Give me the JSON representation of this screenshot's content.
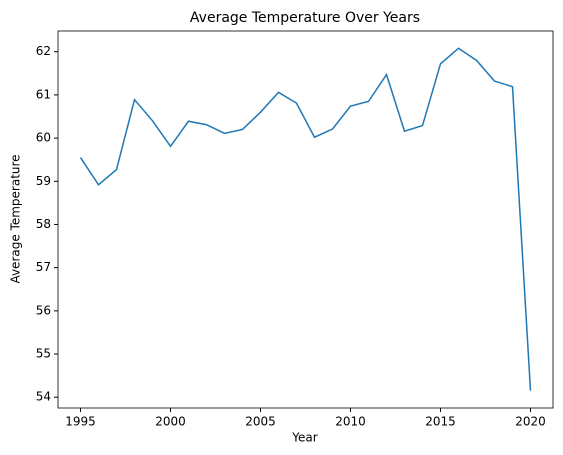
{
  "chart_data": {
    "type": "line",
    "title": "Average Temperature Over Years",
    "x_label": "Year",
    "y_label": "Average Temperature",
    "x": [
      1995,
      1996,
      1997,
      1998,
      1999,
      2000,
      2001,
      2002,
      2003,
      2004,
      2005,
      2006,
      2007,
      2008,
      2009,
      2010,
      2011,
      2012,
      2013,
      2014,
      2015,
      2016,
      2017,
      2018,
      2019,
      2020
    ],
    "series": [
      {
        "name": "Average Temperature",
        "color": "#1f77b4",
        "values": [
          59.55,
          58.92,
          59.27,
          60.89,
          60.4,
          59.81,
          60.39,
          60.31,
          60.11,
          60.2,
          60.6,
          61.06,
          60.81,
          60.02,
          60.21,
          60.74,
          60.85,
          61.47,
          60.16,
          60.29,
          61.72,
          62.08,
          61.8,
          61.32,
          61.19,
          54.15
        ]
      }
    ],
    "xlim": [
      1993.75,
      2021.25
    ],
    "xticks": [
      1995,
      2000,
      2005,
      2010,
      2015,
      2020
    ],
    "ylim": [
      53.75,
      62.48
    ],
    "yticks": [
      54,
      55,
      56,
      57,
      58,
      59,
      60,
      61,
      62
    ],
    "grid": false
  }
}
